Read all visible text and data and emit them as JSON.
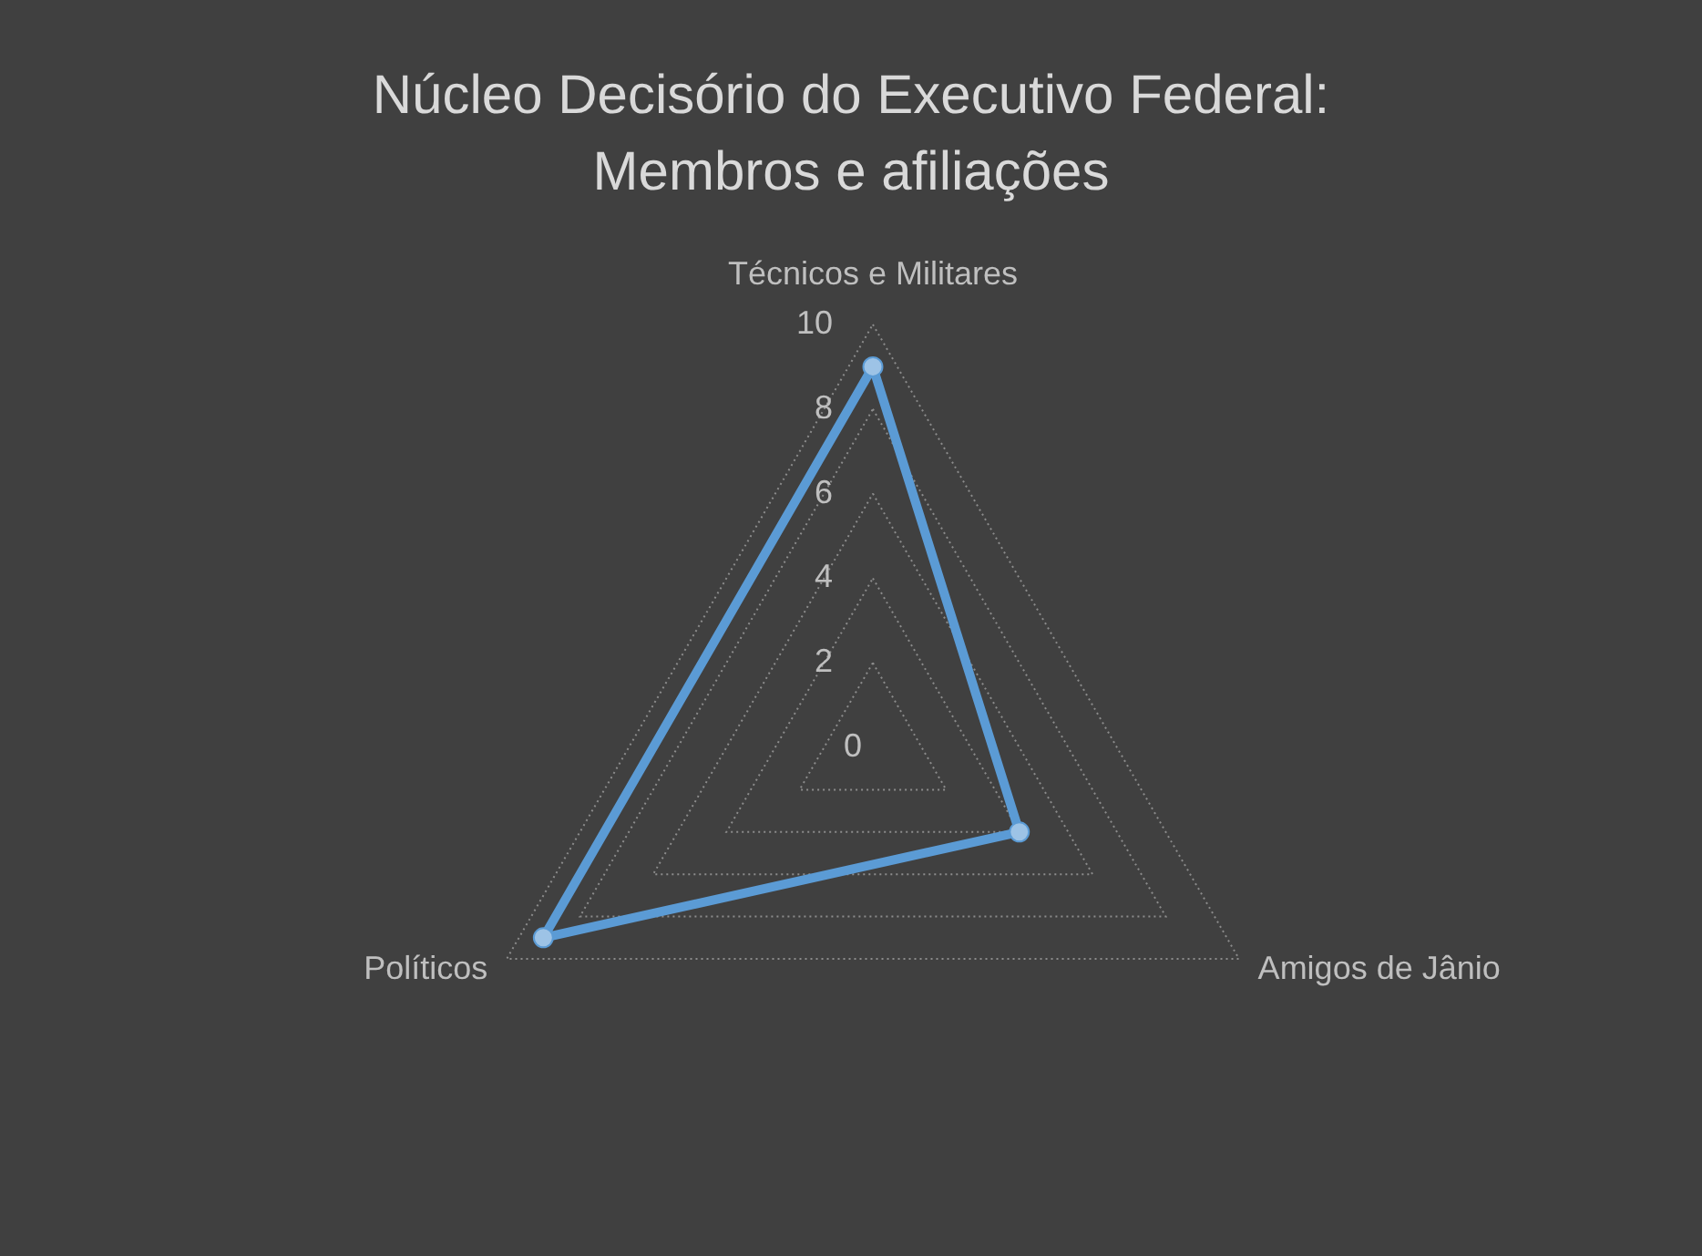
{
  "chart_data": {
    "type": "radar",
    "title": "Núcleo Decisório do Executivo Federal: Membros e afiliações",
    "categories": [
      "Técnicos e Militares",
      "Amigos de Jânio",
      "Políticos"
    ],
    "series": [
      {
        "color": "#5b9bd5",
        "values": [
          9,
          4,
          9
        ]
      }
    ],
    "ylim": [
      0,
      10
    ],
    "yticks": [
      0,
      2,
      4,
      6,
      8,
      10
    ],
    "grid": true,
    "marker": "circle",
    "line_style": "solid"
  }
}
